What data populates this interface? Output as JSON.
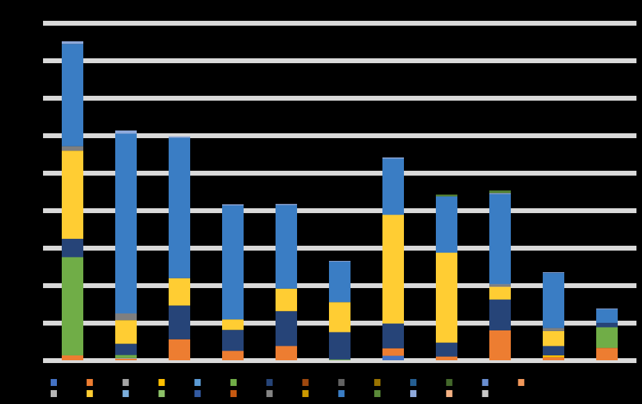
{
  "chart_data": {
    "type": "bar",
    "stacked": true,
    "title": "",
    "xlabel": "",
    "ylabel": "",
    "ylim": [
      0,
      9
    ],
    "grid": true,
    "legend_position": "bottom",
    "categories": [
      "",
      "",
      "",
      "",
      "",
      "",
      "",
      "",
      "",
      "",
      ""
    ],
    "series": [
      {
        "color": "#4472C4",
        "values": [
          0,
          0,
          0,
          0,
          0,
          0,
          0.12,
          0,
          0,
          0,
          0
        ]
      },
      {
        "color": "#ED7D31",
        "values": [
          0.13,
          0.04,
          0.56,
          0.25,
          0.38,
          0,
          0.2,
          0.1,
          0.8,
          0.08,
          0.33
        ]
      },
      {
        "color": "#A5A5A5",
        "values": [
          0,
          0.02,
          0,
          0,
          0,
          0,
          0,
          0,
          0,
          0,
          0
        ]
      },
      {
        "color": "#FFC000",
        "values": [
          0,
          0,
          0,
          0,
          0,
          0,
          0,
          0,
          0,
          0.05,
          0
        ]
      },
      {
        "color": "#5B9BD5",
        "values": [
          0,
          0,
          0,
          0,
          0,
          0,
          0,
          0,
          0,
          0,
          0
        ]
      },
      {
        "color": "#70AD47",
        "values": [
          2.62,
          0.08,
          0,
          0,
          0,
          0.02,
          0,
          0,
          0,
          0,
          0.55
        ]
      },
      {
        "color": "#264478",
        "values": [
          0.49,
          0.3,
          0.9,
          0.56,
          0.93,
          0.73,
          0.66,
          0.37,
          0.82,
          0.25,
          0.12
        ]
      },
      {
        "color": "#FFCD33",
        "values": [
          2.35,
          0.63,
          0.73,
          0.28,
          0.6,
          0.8,
          2.9,
          2.4,
          0.34,
          0.4,
          0
        ]
      },
      {
        "color": "#7F7F7F",
        "values": [
          0.12,
          0.18,
          0,
          0,
          0,
          0,
          0,
          0,
          0.07,
          0.08,
          0
        ]
      },
      {
        "color": "#3A7DC4",
        "values": [
          2.73,
          4.8,
          3.75,
          3.04,
          2.23,
          1.08,
          1.5,
          1.5,
          2.4,
          1.47,
          0.36
        ]
      },
      {
        "color": "#8FAADC",
        "values": [
          0.07,
          0.08,
          0.03,
          0.03,
          0.03,
          0.02,
          0.03,
          0,
          0.03,
          0.02,
          0.02
        ]
      },
      {
        "color": "#548235",
        "values": [
          0,
          0,
          0,
          0,
          0,
          0,
          0,
          0.05,
          0.07,
          0,
          0
        ]
      }
    ],
    "legend": {
      "rows": [
        [
          {
            "label": "",
            "color": "#4472C4"
          },
          {
            "label": "",
            "color": "#ED7D31"
          },
          {
            "label": "",
            "color": "#A5A5A5"
          },
          {
            "label": "",
            "color": "#FFC000"
          },
          {
            "label": "",
            "color": "#5B9BD5"
          },
          {
            "label": "",
            "color": "#70AD47"
          },
          {
            "label": "",
            "color": "#264478"
          },
          {
            "label": "",
            "color": "#9E480E"
          },
          {
            "label": "",
            "color": "#636363"
          },
          {
            "label": "",
            "color": "#997300"
          },
          {
            "label": "",
            "color": "#255E91"
          },
          {
            "label": "",
            "color": "#43682B"
          },
          {
            "label": "",
            "color": "#698ED0"
          },
          {
            "label": "",
            "color": "#F1975A"
          }
        ],
        [
          {
            "label": "",
            "color": "#B7B7B7"
          },
          {
            "label": "",
            "color": "#FFCD33"
          },
          {
            "label": "",
            "color": "#7CAFDD"
          },
          {
            "label": "",
            "color": "#8CC168"
          },
          {
            "label": "",
            "color": "#335AA1"
          },
          {
            "label": "",
            "color": "#C65911"
          },
          {
            "label": "",
            "color": "#848484"
          },
          {
            "label": "",
            "color": "#CC9A00"
          },
          {
            "label": "",
            "color": "#3A7DC4"
          },
          {
            "label": "",
            "color": "#5A8A39"
          },
          {
            "label": "",
            "color": "#8FAADC"
          },
          {
            "label": "",
            "color": "#F4B183"
          },
          {
            "label": "",
            "color": "#C9C9C9"
          }
        ]
      ]
    },
    "gridline_color": "#D9D9D9",
    "background_color": "#000000"
  }
}
